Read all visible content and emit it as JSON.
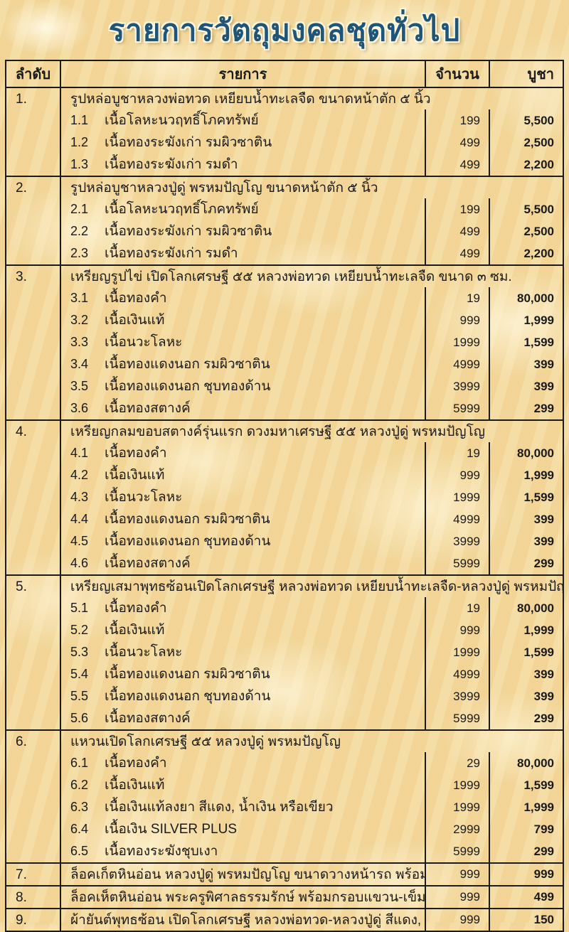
{
  "title": "รายการวัตถุมงคลชุดทั่วไป",
  "colors": {
    "title_text": "#1e5578",
    "table_border": "#1c1c1c",
    "body_text": "#1a1a1a",
    "background_gold": "#f2d79a",
    "background_cream": "#fdf3d5"
  },
  "table": {
    "headers": {
      "index": "ลำดับ",
      "item": "รายการ",
      "quantity": "จำนวน",
      "price": "บูชา"
    },
    "sections": [
      {
        "no": "1.",
        "title": "รูปหล่อบูชาหลวงพ่อทวด เหยียบน้ำทะเลจืด  ขนาดหน้าตัก ๕ นิ้ว",
        "rows": [
          {
            "no": "1.1",
            "item": "เนื้อโลหะนวฤทธิ์โภคทรัพย์",
            "qty": "199",
            "price": "5,500"
          },
          {
            "no": "1.2",
            "item": "เนื้อทองระฆังเก่า รมผิวซาติน",
            "qty": "499",
            "price": "2,500"
          },
          {
            "no": "1.3",
            "item": "เนื้อทองระฆังเก่า รมดำ",
            "qty": "499",
            "price": "2,200"
          }
        ]
      },
      {
        "no": "2.",
        "title": "รูปหล่อบูชาหลวงปู่ดู่ พรหมปัญโญ  ขนาดหน้าตัก ๕ นิ้ว",
        "rows": [
          {
            "no": "2.1",
            "item": "เนื้อโลหะนวฤทธิ์โภคทรัพย์",
            "qty": "199",
            "price": "5,500"
          },
          {
            "no": "2.2",
            "item": "เนื้อทองระฆังเก่า รมผิวซาติน",
            "qty": "499",
            "price": "2,500"
          },
          {
            "no": "2.3",
            "item": "เนื้อทองระฆังเก่า รมดำ",
            "qty": "499",
            "price": "2,200"
          }
        ]
      },
      {
        "no": "3.",
        "title": "เหรียญรูปไข่ เปิดโลกเศรษฐี ๕๕  หลวงพ่อทวด เหยียบน้ำทะเลจืด ขนาด ๓ ซม.",
        "rows": [
          {
            "no": "3.1",
            "item": "เนื้อทองคำ",
            "qty": "19",
            "price": "80,000"
          },
          {
            "no": "3.2",
            "item": "เนื้อเงินแท้",
            "qty": "999",
            "price": "1,999"
          },
          {
            "no": "3.3",
            "item": "เนื้อนวะโลหะ",
            "qty": "1999",
            "price": "1,599"
          },
          {
            "no": "3.4",
            "item": "เนื้อทองแดงนอก รมผิวซาติน",
            "qty": "4999",
            "price": "399"
          },
          {
            "no": "3.5",
            "item": "เนื้อทองแดงนอก ชุบทองด้าน",
            "qty": "3999",
            "price": "399"
          },
          {
            "no": "3.6",
            "item": "เนื้อทองสตางค์",
            "qty": "5999",
            "price": "299"
          }
        ]
      },
      {
        "no": "4.",
        "title": "เหรียญกลมขอบสตางค์รุ่นแรก  ดวงมหาเศรษฐี ๕๕  หลวงปู่ดู่ พรหมปัญโญ",
        "rows": [
          {
            "no": "4.1",
            "item": "เนื้อทองคำ",
            "qty": "19",
            "price": "80,000"
          },
          {
            "no": "4.2",
            "item": "เนื้อเงินแท้",
            "qty": "999",
            "price": "1,999"
          },
          {
            "no": "4.3",
            "item": "เนื้อนวะโลหะ",
            "qty": "1999",
            "price": "1,599"
          },
          {
            "no": "4.4",
            "item": "เนื้อทองแดงนอก รมผิวซาติน",
            "qty": "4999",
            "price": "399"
          },
          {
            "no": "4.5",
            "item": "เนื้อทองแดงนอก ชุบทองด้าน",
            "qty": "3999",
            "price": "399"
          },
          {
            "no": "4.6",
            "item": "เนื้อทองสตางค์",
            "qty": "5999",
            "price": "299"
          }
        ]
      },
      {
        "no": "5.",
        "title": "เหรียญเสมาพุทธซ้อนเปิดโลกเศรษฐี หลวงพ่อทวด เหยียบน้ำทะเลจืด-หลวงปู่ดู่ พรหมปัญโญ",
        "rows": [
          {
            "no": "5.1",
            "item": "เนื้อทองคำ",
            "qty": "19",
            "price": "80,000"
          },
          {
            "no": "5.2",
            "item": "เนื้อเงินแท้",
            "qty": "999",
            "price": "1,999"
          },
          {
            "no": "5.3",
            "item": "เนื้อนวะโลหะ",
            "qty": "1999",
            "price": "1,599"
          },
          {
            "no": "5.4",
            "item": "เนื้อทองแดงนอก รมผิวซาติน",
            "qty": "4999",
            "price": "399"
          },
          {
            "no": "5.5",
            "item": "เนื้อทองแดงนอก ชุบทองด้าน",
            "qty": "3999",
            "price": "399"
          },
          {
            "no": "5.6",
            "item": "เนื้อทองสตางค์",
            "qty": "5999",
            "price": "299"
          }
        ]
      },
      {
        "no": "6.",
        "title": "แหวนเปิดโลกเศรษฐี ๕๕  หลวงปู่ดู่ พรหมปัญโญ",
        "rows": [
          {
            "no": "6.1",
            "item": "เนื้อทองคำ",
            "qty": "29",
            "price": "80,000"
          },
          {
            "no": "6.2",
            "item": "เนื้อเงินแท้",
            "qty": "1999",
            "price": "1,599"
          },
          {
            "no": "6.3",
            "item": "เนื้อเงินแท้ลงยา สีแดง, น้ำเงิน หรือเขียว",
            "qty": "1999",
            "price": "1,999"
          },
          {
            "no": "6.4",
            "item": "เนื้อเงิน SILVER PLUS",
            "qty": "2999",
            "price": "799"
          },
          {
            "no": "6.5",
            "item": "เนื้อทองระฆังชุบเงา",
            "qty": "5999",
            "price": "299"
          }
        ]
      },
      {
        "no": "7.",
        "title": "ล็อคเก็ตหินอ่อน หลวงปู่ดู่ พรหมปัญโญ ขนาดวางหน้ารถ พร้อมแท่นวาง",
        "qty": "999",
        "price": "999",
        "rows": []
      },
      {
        "no": "8.",
        "title": "ล็อคเห็ตหินอ่อน พระครูพิศาลธรรมรักษ์ พร้อมกรอบแขวน-เข็มกลัด",
        "qty": "999",
        "price": "499",
        "rows": []
      },
      {
        "no": "9.",
        "title": "ผ้ายันต์พุทธซ้อน เปิดโลกเศรษฐี หลวงพ่อทวด-หลวงปู่ดู่ สีแดง, ดำ หรือเขียว",
        "qty": "999",
        "price": "150",
        "rows": []
      }
    ]
  }
}
